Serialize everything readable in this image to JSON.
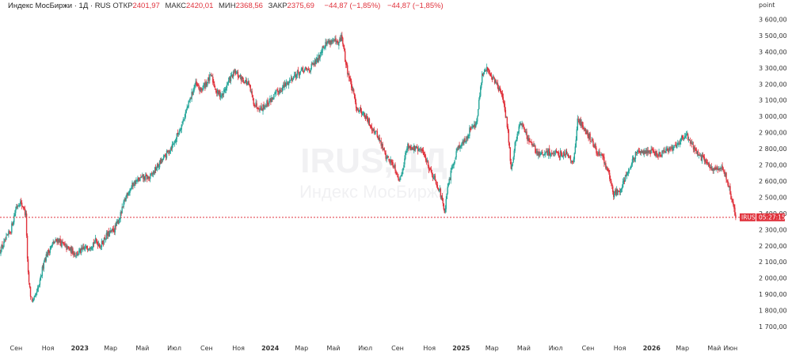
{
  "header": {
    "title": "Индекс МосБиржи · 1Д · RUS",
    "open_label": "ОТКР",
    "open": "2401,97",
    "high_label": "МАКС",
    "high": "2420,01",
    "low_label": "МИН",
    "low": "2368,56",
    "close_label": "ЗАКР",
    "close": "2375,69",
    "change": "−44,87 (−1,85%)",
    "change2": "−44,87 (−1,85%)"
  },
  "watermark": {
    "symbol": "IRUS, 1Д",
    "name": "Индекс МосБиржи"
  },
  "price_tag": {
    "symbol": "IRUS",
    "countdown": "05:27:15",
    "color": "#e0323c"
  },
  "colors": {
    "up": "#26a69a",
    "down": "#e0323c"
  },
  "chart_data": {
    "type": "candlestick",
    "ylabel": "point",
    "ylim": [
      1650,
      3650
    ],
    "y_ticks": [
      "3 600,00",
      "3 500,00",
      "3 400,00",
      "3 300,00",
      "3 200,00",
      "3 100,00",
      "3 000,00",
      "2 900,00",
      "2 800,00",
      "2 700,00",
      "2 600,00",
      "2 500,00",
      "2 400,00",
      "2 300,00",
      "2 200,00",
      "2 100,00",
      "2 000,00",
      "1 900,00",
      "1 800,00",
      "1 700,00"
    ],
    "y_tick_values": [
      3600,
      3500,
      3400,
      3300,
      3200,
      3100,
      3000,
      2900,
      2800,
      2700,
      2600,
      2500,
      2400,
      2300,
      2200,
      2100,
      2000,
      1900,
      1800,
      1700
    ],
    "x_start": "2022-08-01",
    "x_end": "2026-07-10",
    "x_ticks": [
      {
        "label": "Сен",
        "date": "2022-09-01",
        "year": false
      },
      {
        "label": "Ноя",
        "date": "2022-11-01",
        "year": false
      },
      {
        "label": "2023",
        "date": "2023-01-01",
        "year": true
      },
      {
        "label": "Мар",
        "date": "2023-03-01",
        "year": false
      },
      {
        "label": "Май",
        "date": "2023-05-01",
        "year": false
      },
      {
        "label": "Июл",
        "date": "2023-07-01",
        "year": false
      },
      {
        "label": "Сен",
        "date": "2023-09-01",
        "year": false
      },
      {
        "label": "Ноя",
        "date": "2023-11-01",
        "year": false
      },
      {
        "label": "2024",
        "date": "2024-01-01",
        "year": true
      },
      {
        "label": "Мар",
        "date": "2024-03-01",
        "year": false
      },
      {
        "label": "Май",
        "date": "2024-05-01",
        "year": false
      },
      {
        "label": "Июл",
        "date": "2024-07-01",
        "year": false
      },
      {
        "label": "Сен",
        "date": "2024-09-01",
        "year": false
      },
      {
        "label": "Ноя",
        "date": "2024-11-01",
        "year": false
      },
      {
        "label": "2025",
        "date": "2025-01-01",
        "year": true
      },
      {
        "label": "Мар",
        "date": "2025-03-01",
        "year": false
      },
      {
        "label": "Май",
        "date": "2025-05-01",
        "year": false
      },
      {
        "label": "Июл",
        "date": "2025-07-01",
        "year": false
      },
      {
        "label": "Сен",
        "date": "2025-09-01",
        "year": false
      },
      {
        "label": "Ноя",
        "date": "2025-11-01",
        "year": false
      },
      {
        "label": "2026",
        "date": "2026-01-01",
        "year": true
      },
      {
        "label": "Мар",
        "date": "2026-03-01",
        "year": false
      },
      {
        "label": "Май",
        "date": "2026-05-01",
        "year": false
      },
      {
        "label": "Июн",
        "date": "2026-06-01",
        "year": false
      }
    ],
    "last_close": 2375.69,
    "series": [
      {
        "values_by_date": [
          [
            "2022-08-01",
            2170
          ],
          [
            "2022-08-10",
            2220
          ],
          [
            "2022-08-22",
            2300
          ],
          [
            "2022-09-01",
            2440
          ],
          [
            "2022-09-08",
            2470
          ],
          [
            "2022-09-15",
            2440
          ],
          [
            "2022-09-20",
            2380
          ],
          [
            "2022-09-23",
            2050
          ],
          [
            "2022-09-28",
            1900
          ],
          [
            "2022-10-03",
            1850
          ],
          [
            "2022-10-10",
            1900
          ],
          [
            "2022-10-17",
            1980
          ],
          [
            "2022-10-24",
            2110
          ],
          [
            "2022-11-01",
            2160
          ],
          [
            "2022-11-10",
            2210
          ],
          [
            "2022-11-20",
            2240
          ],
          [
            "2022-12-01",
            2200
          ],
          [
            "2022-12-15",
            2170
          ],
          [
            "2022-12-25",
            2150
          ],
          [
            "2023-01-05",
            2170
          ],
          [
            "2023-01-20",
            2200
          ],
          [
            "2023-02-01",
            2230
          ],
          [
            "2023-02-10",
            2200
          ],
          [
            "2023-02-20",
            2260
          ],
          [
            "2023-03-01",
            2280
          ],
          [
            "2023-03-10",
            2310
          ],
          [
            "2023-03-20",
            2390
          ],
          [
            "2023-04-01",
            2520
          ],
          [
            "2023-04-15",
            2590
          ],
          [
            "2023-05-01",
            2620
          ],
          [
            "2023-05-15",
            2620
          ],
          [
            "2023-06-01",
            2700
          ],
          [
            "2023-06-15",
            2760
          ],
          [
            "2023-07-01",
            2840
          ],
          [
            "2023-07-15",
            2950
          ],
          [
            "2023-08-01",
            3110
          ],
          [
            "2023-08-10",
            3200
          ],
          [
            "2023-08-20",
            3160
          ],
          [
            "2023-09-01",
            3210
          ],
          [
            "2023-09-10",
            3250
          ],
          [
            "2023-09-20",
            3150
          ],
          [
            "2023-10-01",
            3130
          ],
          [
            "2023-10-15",
            3230
          ],
          [
            "2023-10-25",
            3270
          ],
          [
            "2023-11-05",
            3240
          ],
          [
            "2023-11-20",
            3200
          ],
          [
            "2023-12-01",
            3080
          ],
          [
            "2023-12-15",
            3050
          ],
          [
            "2024-01-01",
            3100
          ],
          [
            "2024-01-15",
            3150
          ],
          [
            "2024-02-01",
            3200
          ],
          [
            "2024-02-15",
            3250
          ],
          [
            "2024-03-01",
            3280
          ],
          [
            "2024-03-15",
            3290
          ],
          [
            "2024-04-01",
            3350
          ],
          [
            "2024-04-10",
            3430
          ],
          [
            "2024-04-20",
            3460
          ],
          [
            "2024-05-01",
            3470
          ],
          [
            "2024-05-10",
            3440
          ],
          [
            "2024-05-17",
            3500
          ],
          [
            "2024-05-25",
            3320
          ],
          [
            "2024-06-05",
            3180
          ],
          [
            "2024-06-15",
            3050
          ],
          [
            "2024-06-25",
            3030
          ],
          [
            "2024-07-10",
            2950
          ],
          [
            "2024-07-25",
            2880
          ],
          [
            "2024-08-10",
            2750
          ],
          [
            "2024-08-25",
            2700
          ],
          [
            "2024-09-05",
            2600
          ],
          [
            "2024-09-20",
            2820
          ],
          [
            "2024-10-05",
            2800
          ],
          [
            "2024-10-20",
            2780
          ],
          [
            "2024-11-01",
            2680
          ],
          [
            "2024-11-10",
            2620
          ],
          [
            "2024-11-20",
            2550
          ],
          [
            "2024-11-27",
            2450
          ],
          [
            "2024-12-01",
            2400
          ],
          [
            "2024-12-05",
            2540
          ],
          [
            "2024-12-15",
            2690
          ],
          [
            "2024-12-25",
            2810
          ],
          [
            "2025-01-10",
            2850
          ],
          [
            "2025-01-20",
            2940
          ],
          [
            "2025-01-30",
            2950
          ],
          [
            "2025-02-10",
            3250
          ],
          [
            "2025-02-20",
            3300
          ],
          [
            "2025-02-28",
            3250
          ],
          [
            "2025-03-10",
            3200
          ],
          [
            "2025-03-20",
            3130
          ],
          [
            "2025-03-31",
            2930
          ],
          [
            "2025-04-07",
            2660
          ],
          [
            "2025-04-15",
            2850
          ],
          [
            "2025-04-25",
            2970
          ],
          [
            "2025-05-10",
            2850
          ],
          [
            "2025-05-25",
            2780
          ],
          [
            "2025-06-05",
            2760
          ],
          [
            "2025-06-20",
            2780
          ],
          [
            "2025-07-05",
            2760
          ],
          [
            "2025-07-20",
            2780
          ],
          [
            "2025-08-05",
            2720
          ],
          [
            "2025-08-12",
            2980
          ],
          [
            "2025-08-20",
            2950
          ],
          [
            "2025-09-01",
            2890
          ],
          [
            "2025-09-15",
            2800
          ],
          [
            "2025-10-01",
            2730
          ],
          [
            "2025-10-10",
            2650
          ],
          [
            "2025-10-20",
            2520
          ],
          [
            "2025-11-01",
            2550
          ],
          [
            "2025-11-15",
            2650
          ],
          [
            "2025-12-01",
            2760
          ],
          [
            "2025-12-15",
            2790
          ],
          [
            "2026-01-01",
            2780
          ],
          [
            "2026-01-15",
            2760
          ],
          [
            "2026-02-01",
            2790
          ],
          [
            "2026-02-15",
            2820
          ],
          [
            "2026-03-01",
            2870
          ],
          [
            "2026-03-10",
            2880
          ],
          [
            "2026-03-20",
            2820
          ],
          [
            "2026-04-01",
            2760
          ],
          [
            "2026-04-15",
            2720
          ],
          [
            "2026-05-01",
            2660
          ],
          [
            "2026-05-15",
            2680
          ],
          [
            "2026-05-25",
            2620
          ],
          [
            "2026-06-01",
            2520
          ],
          [
            "2026-06-08",
            2420
          ],
          [
            "2026-06-11",
            2376
          ]
        ]
      }
    ]
  }
}
